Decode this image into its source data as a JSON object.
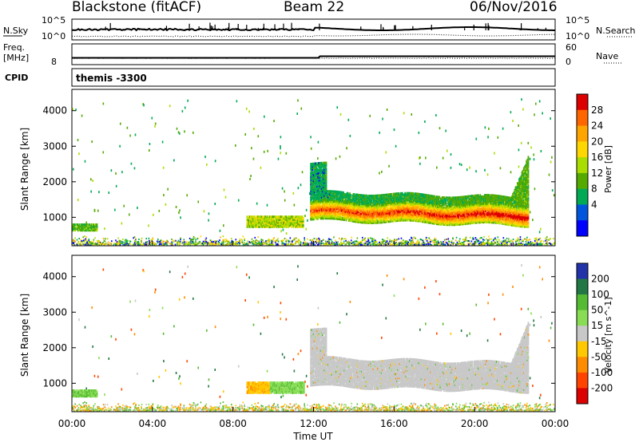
{
  "header": {
    "station": "Blackstone (fitACF)",
    "beam": "Beam 22",
    "date": "06/Nov/2016"
  },
  "top_panels": {
    "nsky_label": "N.Sky",
    "nsearch_label": "N.Search",
    "count_ticks": [
      "10^5",
      "10^0"
    ],
    "freq_label": "Freq.",
    "freq_unit": "[MHz]",
    "freq_tick": "8",
    "nave_label": "Nave",
    "nave_ticks": [
      "60",
      "0"
    ],
    "cpid_label": "CPID",
    "cpid_value": "themis -3300"
  },
  "chart_data": [
    {
      "type": "heatmap",
      "title": "",
      "xlabel": "Time UT",
      "ylabel": "Slant Range [km]",
      "xlim": [
        "00:00",
        "24:00"
      ],
      "ylim": [
        200,
        4600
      ],
      "x_ticks": [
        "00:00",
        "04:00",
        "08:00",
        "12:00",
        "16:00",
        "20:00",
        "00:00"
      ],
      "y_ticks": [
        1000,
        2000,
        3000,
        4000
      ],
      "colorbar": {
        "label": "Power [dB]",
        "ticks": [
          28,
          24,
          20,
          16,
          12,
          8,
          4
        ],
        "colors": [
          "#dd0000",
          "#ff6600",
          "#ffa500",
          "#ffd700",
          "#aadd00",
          "#55aa00",
          "#00aa55",
          "#0055dd",
          "#0000ff"
        ]
      },
      "regions": [
        {
          "from": "00:00",
          "to": "01:15",
          "range": [
            600,
            800
          ],
          "value": 10
        },
        {
          "from": "08:40",
          "to": "11:30",
          "range": [
            700,
            1000
          ],
          "value": 14
        },
        {
          "from": "11:50",
          "to": "22:40",
          "range": [
            800,
            2000
          ],
          "value": 18,
          "peak_value": 28
        }
      ]
    },
    {
      "type": "heatmap",
      "xlabel": "Time UT",
      "ylabel": "Slant Range [km]",
      "xlim": [
        "00:00",
        "24:00"
      ],
      "ylim": [
        200,
        4600
      ],
      "x_ticks": [
        "00:00",
        "04:00",
        "08:00",
        "12:00",
        "16:00",
        "20:00",
        "00:00"
      ],
      "y_ticks": [
        1000,
        2000,
        3000,
        4000
      ],
      "colorbar": {
        "label": "Velocity [m s^-1]",
        "ticks": [
          200,
          100,
          50,
          15,
          -15,
          -50,
          -100,
          -200
        ],
        "colors": [
          "#2233aa",
          "#227744",
          "#55bb33",
          "#88dd55",
          "#c8c8c8",
          "#ffc800",
          "#ff8c00",
          "#ff4400",
          "#dd0000"
        ]
      },
      "regions": [
        {
          "from": "00:00",
          "to": "01:15",
          "range": [
            600,
            800
          ],
          "value": 50
        },
        {
          "from": "08:40",
          "to": "09:50",
          "range": [
            700,
            1000
          ],
          "value": -40
        },
        {
          "from": "09:50",
          "to": "11:30",
          "range": [
            700,
            1000
          ],
          "value": 40
        },
        {
          "from": "11:50",
          "to": "22:40",
          "range": [
            800,
            2000
          ],
          "value": 0
        }
      ]
    }
  ]
}
